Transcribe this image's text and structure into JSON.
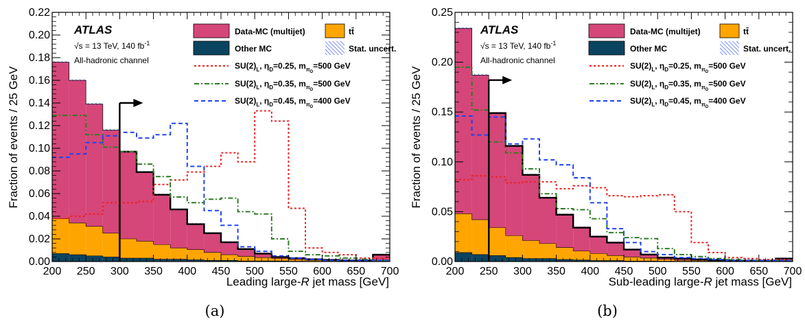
{
  "colors": {
    "multijet": "#d54679",
    "ttbar": "#ffa500",
    "other_mc": "#0b4460",
    "eta025": "#ee2222",
    "eta035": "#2e7d24",
    "eta045": "#1f44ee",
    "cut_arrow": "#000000"
  },
  "chart_data": [
    {
      "type": "area",
      "panel_label": "(a)",
      "xlabel_main": "Leading large-",
      "xlabel_var": "R",
      "xlabel_tail": " jet mass [GeV]",
      "ylabel": "Fraction of events / 25 GeV",
      "xlim": [
        200,
        700
      ],
      "ylim": [
        0,
        0.22
      ],
      "xticks": [
        200,
        250,
        300,
        350,
        400,
        450,
        500,
        550,
        600,
        650,
        700
      ],
      "yticks": [
        "0.00",
        "0.02",
        "0.04",
        "0.06",
        "0.08",
        "0.10",
        "0.12",
        "0.14",
        "0.16",
        "0.18",
        "0.20",
        "0.22"
      ],
      "atlas_label": "ATLAS",
      "energy_text": "√s = 13 TeV, 140 fb",
      "energy_sup": "-1",
      "channel_text": "All-hadronic channel",
      "cut_value": 300,
      "cut_arrow_y": 0.14,
      "bin_edges": [
        200,
        225,
        250,
        275,
        300,
        325,
        350,
        375,
        400,
        425,
        450,
        475,
        500,
        525,
        550,
        575,
        600,
        625,
        650,
        675,
        700
      ],
      "total": [
        0.176,
        0.16,
        0.139,
        0.116,
        0.097,
        0.079,
        0.059,
        0.046,
        0.033,
        0.025,
        0.017,
        0.011,
        0.007,
        0.004,
        0.003,
        0.002,
        0.0015,
        0.001,
        0.001,
        0.006
      ],
      "ttbar": [
        0.031,
        0.028,
        0.026,
        0.021,
        0.017,
        0.015,
        0.013,
        0.01,
        0.009,
        0.007,
        0.005,
        0.004,
        0.003,
        0.002,
        0.0015,
        0.001,
        0.001,
        0.0005,
        0.0005,
        0.001
      ],
      "other_mc": [
        0.007,
        0.006,
        0.005,
        0.004,
        0.003,
        0.003,
        0.002,
        0.002,
        0.0015,
        0.001,
        0.001,
        0.0005,
        0.0005,
        0.0005,
        0.0003,
        0.0002,
        0.0002,
        0.0001,
        0.0001,
        0.0002
      ],
      "signals": [
        {
          "name": "SU(2)L, ηD=0.25, mπD=500 GeV",
          "key": "eta025",
          "dash": "3,3",
          "values": [
            0.038,
            0.04,
            0.042,
            0.052,
            0.052,
            0.053,
            0.068,
            0.072,
            0.079,
            0.084,
            0.096,
            0.088,
            0.133,
            0.124,
            0.047,
            0.012,
            0.008,
            0.006,
            0.003,
            0.003
          ]
        },
        {
          "name": "SU(2)L, ηD=0.35, mπD=500 GeV",
          "key": "eta035",
          "dash": "7,3,2,3",
          "values": [
            0.129,
            0.129,
            0.112,
            0.101,
            0.097,
            0.086,
            0.075,
            0.057,
            0.052,
            0.055,
            0.056,
            0.044,
            0.042,
            0.02,
            0.009,
            0.006,
            0.005,
            0.003,
            0.002,
            0.001
          ]
        },
        {
          "name": "SU(2)L, ηD=0.45, mπD=400 GeV",
          "key": "eta045",
          "dash": "6,4",
          "values": [
            0.092,
            0.095,
            0.105,
            0.111,
            0.114,
            0.109,
            0.112,
            0.122,
            0.084,
            0.045,
            0.032,
            0.013,
            0.009,
            0.005,
            0.003,
            0.002,
            0.001,
            0.001,
            0.001,
            0.001
          ]
        }
      ]
    },
    {
      "type": "area",
      "panel_label": "(b)",
      "xlabel_main": "Sub-leading large-",
      "xlabel_var": "R",
      "xlabel_tail": " jet mass [GeV]",
      "ylabel": "Fraction of events / 25 GeV",
      "xlim": [
        200,
        700
      ],
      "ylim": [
        0,
        0.25
      ],
      "xticks": [
        200,
        250,
        300,
        350,
        400,
        450,
        500,
        550,
        600,
        650,
        700
      ],
      "yticks": [
        "0.00",
        "0.05",
        "0.10",
        "0.15",
        "0.20",
        "0.25"
      ],
      "atlas_label": "ATLAS",
      "energy_text": "√s = 13 TeV, 140 fb",
      "energy_sup": "-1",
      "channel_text": "All-hadronic channel",
      "cut_value": 250,
      "cut_arrow_y": 0.182,
      "bin_edges": [
        200,
        225,
        250,
        275,
        300,
        325,
        350,
        375,
        400,
        425,
        450,
        475,
        500,
        525,
        550,
        575,
        600,
        625,
        650,
        675,
        700
      ],
      "total": [
        0.234,
        0.187,
        0.149,
        0.116,
        0.087,
        0.064,
        0.047,
        0.034,
        0.025,
        0.019,
        0.012,
        0.007,
        0.004,
        0.003,
        0.002,
        0.0015,
        0.001,
        0.001,
        0.001,
        0.003
      ],
      "ttbar": [
        0.039,
        0.035,
        0.028,
        0.022,
        0.018,
        0.015,
        0.012,
        0.009,
        0.007,
        0.005,
        0.004,
        0.003,
        0.002,
        0.001,
        0.001,
        0.0005,
        0.0005,
        0.0003,
        0.0003,
        0.0005
      ],
      "other_mc": [
        0.009,
        0.007,
        0.006,
        0.004,
        0.003,
        0.003,
        0.002,
        0.0015,
        0.001,
        0.001,
        0.0005,
        0.0005,
        0.0003,
        0.0002,
        0.0002,
        0.0001,
        0.0001,
        0.0001,
        0.0001,
        0.0001
      ],
      "signals": [
        {
          "name": "SU(2)L, ηD=0.25, mπD=500 GeV",
          "key": "eta025",
          "dash": "3,3",
          "values": [
            0.082,
            0.086,
            0.085,
            0.079,
            0.08,
            0.08,
            0.073,
            0.076,
            0.074,
            0.066,
            0.065,
            0.066,
            0.067,
            0.05,
            0.019,
            0.009,
            0.004,
            0.003,
            0.002,
            0.002
          ]
        },
        {
          "name": "SU(2)L, ηD=0.35, mπD=500 GeV",
          "key": "eta035",
          "dash": "7,3,2,3",
          "values": [
            0.195,
            0.152,
            0.12,
            0.109,
            0.093,
            0.068,
            0.053,
            0.052,
            0.043,
            0.029,
            0.024,
            0.023,
            0.013,
            0.007,
            0.005,
            0.003,
            0.002,
            0.001,
            0.001,
            0.001
          ]
        },
        {
          "name": "SU(2)L, ηD=0.45, mπD=400 GeV",
          "key": "eta045",
          "dash": "6,4",
          "values": [
            0.146,
            0.127,
            0.145,
            0.118,
            0.123,
            0.102,
            0.097,
            0.084,
            0.059,
            0.033,
            0.019,
            0.01,
            0.007,
            0.004,
            0.003,
            0.002,
            0.001,
            0.001,
            0.001,
            0.001
          ]
        }
      ]
    }
  ],
  "legend": {
    "data_mc": "Data-MC (multijet)",
    "ttbar": "tt̄",
    "other_mc": "Other MC",
    "stat": "Stat. uncert.",
    "sig_prefix": "SU(2)",
    "sig_sub_L": "L",
    "eta_sym": "η",
    "eta_sub": "D",
    "m_sym": "m",
    "m_sub": "π",
    "m_subsub": "D",
    "sig1_eta": "=0.25, ",
    "sig1_mass": "=500 GeV",
    "sig2_eta": "=0.35, ",
    "sig2_mass": "=500 GeV",
    "sig3_eta": "=0.45, ",
    "sig3_mass": "=400 GeV"
  }
}
